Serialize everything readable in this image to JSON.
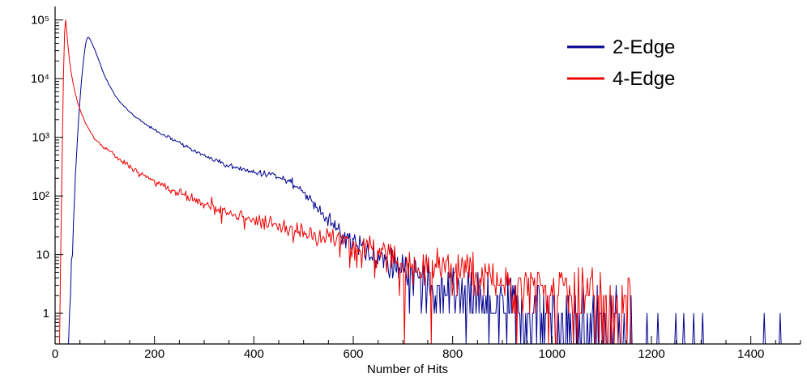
{
  "chart_data": {
    "type": "line",
    "title": "",
    "xlabel": "Number of Hits",
    "ylabel": "",
    "x_range": [
      0,
      1500
    ],
    "y_range_log": [
      0.3,
      170000
    ],
    "x_ticks": [
      0,
      200,
      400,
      600,
      800,
      1000,
      1200,
      1400
    ],
    "x_minor_step": 50,
    "y_ticks": [
      1,
      10,
      100,
      1000,
      10000,
      100000
    ],
    "y_tick_labels": [
      "1",
      "10",
      "10²",
      "10³",
      "10⁴",
      "10⁵"
    ],
    "grid": false,
    "legend_position": "top-right",
    "bin_width": 2,
    "seed": 42,
    "series": [
      {
        "name": "2-Edge",
        "color": "#00008f",
        "anchors": [
          [
            28,
            0.5
          ],
          [
            30,
            1
          ],
          [
            33,
            6
          ],
          [
            36,
            30
          ],
          [
            40,
            150
          ],
          [
            44,
            700
          ],
          [
            48,
            2500
          ],
          [
            52,
            7000
          ],
          [
            56,
            17000
          ],
          [
            60,
            33000
          ],
          [
            63,
            45000
          ],
          [
            66,
            52000
          ],
          [
            69,
            49000
          ],
          [
            72,
            44000
          ],
          [
            76,
            37000
          ],
          [
            80,
            31000
          ],
          [
            85,
            24000
          ],
          [
            90,
            18500
          ],
          [
            95,
            14000
          ],
          [
            100,
            11000
          ],
          [
            110,
            7400
          ],
          [
            120,
            5300
          ],
          [
            130,
            4100
          ],
          [
            140,
            3300
          ],
          [
            150,
            2700
          ],
          [
            160,
            2300
          ],
          [
            175,
            1850
          ],
          [
            190,
            1500
          ],
          [
            200,
            1350
          ],
          [
            220,
            1080
          ],
          [
            240,
            890
          ],
          [
            260,
            730
          ],
          [
            280,
            590
          ],
          [
            300,
            480
          ],
          [
            320,
            410
          ],
          [
            340,
            350
          ],
          [
            360,
            310
          ],
          [
            380,
            275
          ],
          [
            400,
            252
          ],
          [
            415,
            242
          ],
          [
            430,
            237
          ],
          [
            445,
            228
          ],
          [
            460,
            207
          ],
          [
            475,
            175
          ],
          [
            490,
            135
          ],
          [
            500,
            110
          ],
          [
            515,
            82
          ],
          [
            530,
            60
          ],
          [
            545,
            45
          ],
          [
            560,
            33
          ],
          [
            580,
            22
          ],
          [
            600,
            15.5
          ],
          [
            620,
            12
          ],
          [
            640,
            9.6
          ],
          [
            660,
            8
          ],
          [
            680,
            6.6
          ],
          [
            700,
            5.5
          ],
          [
            720,
            4.6
          ],
          [
            740,
            3.9
          ],
          [
            760,
            3.1
          ],
          [
            800,
            2.3
          ],
          [
            840,
            1.9
          ],
          [
            880,
            1.6
          ],
          [
            920,
            1.35
          ],
          [
            960,
            1.15
          ],
          [
            1000,
            1.0
          ],
          [
            1050,
            0.8
          ],
          [
            1100,
            0.65
          ],
          [
            1140,
            0.55
          ],
          [
            1170,
            0.5
          ]
        ],
        "tail_spikes": [
          1190,
          1212,
          1248,
          1264,
          1284,
          1302,
          1425,
          1458
        ],
        "gaps": []
      },
      {
        "name": "4-Edge",
        "color": "#ee0000",
        "anchors": [
          [
            8,
            0.5
          ],
          [
            10,
            2
          ],
          [
            12,
            30
          ],
          [
            14,
            400
          ],
          [
            16,
            4500
          ],
          [
            18,
            32000
          ],
          [
            20,
            108000
          ],
          [
            22,
            92000
          ],
          [
            24,
            56000
          ],
          [
            26,
            36000
          ],
          [
            28,
            24000
          ],
          [
            30,
            17500
          ],
          [
            33,
            11800
          ],
          [
            36,
            8400
          ],
          [
            40,
            5900
          ],
          [
            45,
            4000
          ],
          [
            50,
            3000
          ],
          [
            55,
            2300
          ],
          [
            60,
            1850
          ],
          [
            65,
            1520
          ],
          [
            70,
            1280
          ],
          [
            75,
            1100
          ],
          [
            80,
            960
          ],
          [
            90,
            770
          ],
          [
            100,
            650
          ],
          [
            110,
            560
          ],
          [
            120,
            480
          ],
          [
            135,
            385
          ],
          [
            150,
            315
          ],
          [
            165,
            260
          ],
          [
            180,
            218
          ],
          [
            200,
            172
          ],
          [
            220,
            142
          ],
          [
            240,
            119
          ],
          [
            260,
            101
          ],
          [
            280,
            87
          ],
          [
            300,
            75
          ],
          [
            320,
            65
          ],
          [
            340,
            57
          ],
          [
            360,
            50
          ],
          [
            380,
            44
          ],
          [
            400,
            39
          ],
          [
            425,
            34
          ],
          [
            450,
            30
          ],
          [
            475,
            26.5
          ],
          [
            500,
            23.5
          ],
          [
            525,
            21
          ],
          [
            550,
            18.5
          ],
          [
            575,
            16.3
          ],
          [
            600,
            14.3
          ],
          [
            630,
            12.2
          ],
          [
            660,
            10.4
          ],
          [
            700,
            8.4
          ],
          [
            740,
            7.1
          ],
          [
            780,
            6.1
          ],
          [
            820,
            5.2
          ],
          [
            860,
            4.5
          ],
          [
            900,
            3.8
          ],
          [
            940,
            3.2
          ],
          [
            980,
            2.7
          ],
          [
            1020,
            2.3
          ],
          [
            1060,
            1.9
          ],
          [
            1100,
            1.5
          ],
          [
            1130,
            1.2
          ],
          [
            1160,
            1.0
          ]
        ],
        "tail_spikes": [],
        "gaps": [
          702,
          756
        ]
      }
    ]
  }
}
